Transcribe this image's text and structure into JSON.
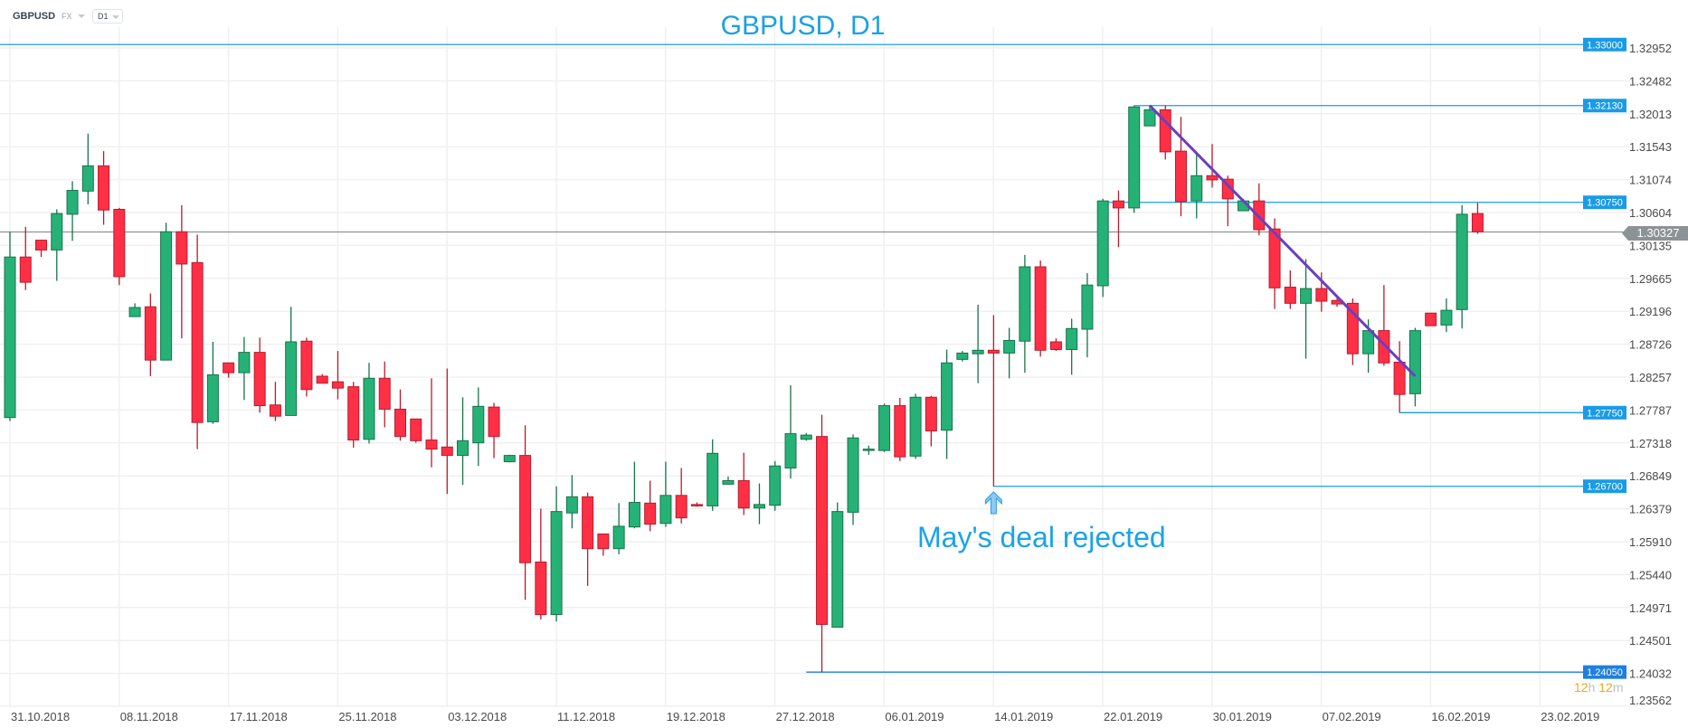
{
  "header": {
    "symbol": "GBPUSD",
    "market": "FX",
    "timeframe": "D1"
  },
  "timer": {
    "hours": "12",
    "h": "h",
    "minutes": "12",
    "m": "m"
  },
  "current_price": {
    "label": "1.30327",
    "value": 1.30327
  },
  "colors": {
    "up": "#26b276",
    "up_border": "#17734c",
    "down": "#ff3046",
    "down_border": "#b71c2c",
    "level": "#1a9be6",
    "trend": "#6a3fbf",
    "title": "#1ba1e2",
    "current": "#8c9396"
  },
  "chart_data": {
    "type": "candlestick",
    "title": "GBPUSD, D1",
    "ylim": [
      1.23562,
      1.32952
    ],
    "y_ticks": [
      "1.32952",
      "1.32482",
      "1.32013",
      "1.31543",
      "1.31074",
      "1.30604",
      "1.30135",
      "1.29665",
      "1.29196",
      "1.28726",
      "1.28257",
      "1.27787",
      "1.27318",
      "1.26849",
      "1.26379",
      "1.25910",
      "1.25440",
      "1.24971",
      "1.24501",
      "1.24032",
      "1.23562"
    ],
    "x_ticks": [
      "31.10.2018",
      "08.11.2018",
      "17.11.2018",
      "25.11.2018",
      "03.12.2018",
      "11.12.2018",
      "19.12.2018",
      "27.12.2018",
      "06.01.2019",
      "14.01.2019",
      "22.01.2019",
      "30.01.2019",
      "07.02.2019",
      "16.02.2019",
      "23.02.2019"
    ],
    "candles_ohlc": [
      [
        1.2768,
        1.3033,
        1.2763,
        1.2997
      ],
      [
        1.2997,
        1.304,
        1.295,
        1.2961
      ],
      [
        1.3021,
        1.3021,
        1.2997,
        1.3007
      ],
      [
        1.3007,
        1.3065,
        1.2963,
        1.3059
      ],
      [
        1.3058,
        1.3105,
        1.302,
        1.3092
      ],
      [
        1.3091,
        1.3173,
        1.3072,
        1.3127
      ],
      [
        1.3127,
        1.3148,
        1.3043,
        1.3064
      ],
      [
        1.3065,
        1.3067,
        1.2957,
        1.2969
      ],
      [
        1.2912,
        1.2931,
        1.2912,
        1.2925
      ],
      [
        1.2926,
        1.2945,
        1.2827,
        1.285
      ],
      [
        1.285,
        1.3046,
        1.285,
        1.3033
      ],
      [
        1.3033,
        1.3071,
        1.2881,
        1.2987
      ],
      [
        1.2989,
        1.3029,
        1.2723,
        1.2761
      ],
      [
        1.2762,
        1.2876,
        1.2759,
        1.2829
      ],
      [
        1.2846,
        1.2846,
        1.2825,
        1.2832
      ],
      [
        1.2832,
        1.2883,
        1.2793,
        1.2861
      ],
      [
        1.2861,
        1.2882,
        1.2775,
        1.2785
      ],
      [
        1.2786,
        1.2819,
        1.2763,
        1.277
      ],
      [
        1.2771,
        1.2926,
        1.2771,
        1.2876
      ],
      [
        1.2877,
        1.2882,
        1.2798,
        1.2808
      ],
      [
        1.2827,
        1.283,
        1.2817,
        1.2817
      ],
      [
        1.2819,
        1.2863,
        1.2794,
        1.281
      ],
      [
        1.2812,
        1.2819,
        1.2725,
        1.2736
      ],
      [
        1.2737,
        1.2846,
        1.2731,
        1.2824
      ],
      [
        1.2824,
        1.2848,
        1.2754,
        1.278
      ],
      [
        1.278,
        1.2808,
        1.2735,
        1.2741
      ],
      [
        1.2766,
        1.2766,
        1.2732,
        1.2735
      ],
      [
        1.2736,
        1.2824,
        1.2697,
        1.2723
      ],
      [
        1.2726,
        1.2838,
        1.2659,
        1.2714
      ],
      [
        1.2714,
        1.2797,
        1.2672,
        1.2735
      ],
      [
        1.2732,
        1.2811,
        1.2699,
        1.2784
      ],
      [
        1.2783,
        1.2789,
        1.271,
        1.2741
      ],
      [
        1.2705,
        1.2715,
        1.2704,
        1.2714
      ],
      [
        1.2714,
        1.2757,
        1.2508,
        1.2561
      ],
      [
        1.2562,
        1.2638,
        1.248,
        1.2487
      ],
      [
        1.2487,
        1.267,
        1.2477,
        1.2634
      ],
      [
        1.2632,
        1.2686,
        1.261,
        1.2655
      ],
      [
        1.2655,
        1.2661,
        1.2528,
        1.2581
      ],
      [
        1.2602,
        1.2602,
        1.2571,
        1.2581
      ],
      [
        1.2581,
        1.2646,
        1.2573,
        1.2613
      ],
      [
        1.2612,
        1.2705,
        1.261,
        1.2647
      ],
      [
        1.2646,
        1.2678,
        1.2606,
        1.2616
      ],
      [
        1.2617,
        1.2705,
        1.2612,
        1.2657
      ],
      [
        1.2657,
        1.2696,
        1.2617,
        1.2625
      ],
      [
        1.2644,
        1.2647,
        1.2641,
        1.2642
      ],
      [
        1.2642,
        1.2737,
        1.2635,
        1.2717
      ],
      [
        1.2673,
        1.2684,
        1.2672,
        1.2678
      ],
      [
        1.2678,
        1.2718,
        1.2629,
        1.2639
      ],
      [
        1.2639,
        1.2674,
        1.2616,
        1.2644
      ],
      [
        1.2643,
        1.2706,
        1.2635,
        1.2699
      ],
      [
        1.2696,
        1.2814,
        1.2681,
        1.2745
      ],
      [
        1.2737,
        1.2746,
        1.2735,
        1.2743
      ],
      [
        1.2741,
        1.2772,
        1.2405,
        1.2473
      ],
      [
        1.2469,
        1.2647,
        1.2469,
        1.2634
      ],
      [
        1.2633,
        1.2744,
        1.2615,
        1.2739
      ],
      [
        1.2722,
        1.2728,
        1.2715,
        1.2723
      ],
      [
        1.2721,
        1.2788,
        1.2719,
        1.2785
      ],
      [
        1.2785,
        1.2796,
        1.2706,
        1.2712
      ],
      [
        1.2713,
        1.2802,
        1.2709,
        1.2797
      ],
      [
        1.2797,
        1.2799,
        1.2727,
        1.2749
      ],
      [
        1.275,
        1.2865,
        1.2709,
        1.2846
      ],
      [
        1.2851,
        1.2863,
        1.2848,
        1.286
      ],
      [
        1.2859,
        1.2929,
        1.2817,
        1.2864
      ],
      [
        1.2864,
        1.2914,
        1.267,
        1.286
      ],
      [
        1.286,
        1.2896,
        1.2824,
        1.2878
      ],
      [
        1.2877,
        1.3,
        1.2832,
        1.2983
      ],
      [
        1.2983,
        1.2992,
        1.2855,
        1.2864
      ],
      [
        1.2876,
        1.2881,
        1.2863,
        1.2865
      ],
      [
        1.2865,
        1.2909,
        1.2829,
        1.2895
      ],
      [
        1.2894,
        1.2974,
        1.2854,
        1.2957
      ],
      [
        1.2956,
        1.308,
        1.294,
        1.3077
      ],
      [
        1.3077,
        1.3092,
        1.3011,
        1.3067
      ],
      [
        1.3067,
        1.3213,
        1.306,
        1.3211
      ],
      [
        1.3184,
        1.3212,
        1.3184,
        1.3207
      ],
      [
        1.3207,
        1.3213,
        1.3136,
        1.3147
      ],
      [
        1.3148,
        1.3197,
        1.3055,
        1.3076
      ],
      [
        1.3077,
        1.3144,
        1.3052,
        1.3113
      ],
      [
        1.3113,
        1.3158,
        1.3096,
        1.3107
      ],
      [
        1.3108,
        1.3113,
        1.3041,
        1.308
      ],
      [
        1.3063,
        1.308,
        1.3063,
        1.3077
      ],
      [
        1.3077,
        1.3102,
        1.3028,
        1.3036
      ],
      [
        1.3037,
        1.3052,
        1.2923,
        1.2953
      ],
      [
        1.2954,
        1.2978,
        1.2923,
        1.2931
      ],
      [
        1.2931,
        1.2994,
        1.2852,
        1.2952
      ],
      [
        1.2952,
        1.2975,
        1.2919,
        1.2934
      ],
      [
        1.2935,
        1.2941,
        1.2926,
        1.293
      ],
      [
        1.2931,
        1.2938,
        1.2843,
        1.2859
      ],
      [
        1.2859,
        1.2908,
        1.2832,
        1.2892
      ],
      [
        1.2892,
        1.2957,
        1.2842,
        1.2846
      ],
      [
        1.2847,
        1.2877,
        1.2775,
        1.2801
      ],
      [
        1.2802,
        1.2896,
        1.2784,
        1.2892
      ],
      [
        1.2917,
        1.2917,
        1.2899,
        1.2899
      ],
      [
        1.29,
        1.2938,
        1.289,
        1.2921
      ],
      [
        1.2922,
        1.3071,
        1.2895,
        1.3058
      ],
      [
        1.3059,
        1.3074,
        1.303,
        1.3033
      ]
    ],
    "levels": [
      {
        "price": 1.33,
        "label": "1.33000",
        "anchor_index": null
      },
      {
        "price": 1.3213,
        "label": "1.32130",
        "anchor_index": 72
      },
      {
        "price": 1.3075,
        "label": "1.30750",
        "anchor_index": 70
      },
      {
        "price": 1.2775,
        "label": "1.27750",
        "anchor_index": 89
      },
      {
        "price": 1.267,
        "label": "1.26700",
        "anchor_index": 63
      },
      {
        "price": 1.2405,
        "label": "1.24050",
        "anchor_index": 51
      }
    ],
    "trendline": {
      "from": {
        "index": 73,
        "price": 1.3213
      },
      "to": {
        "index": 90,
        "price": 1.2827
      }
    },
    "annotation": {
      "text": "May's deal rejected",
      "index": 63
    }
  }
}
